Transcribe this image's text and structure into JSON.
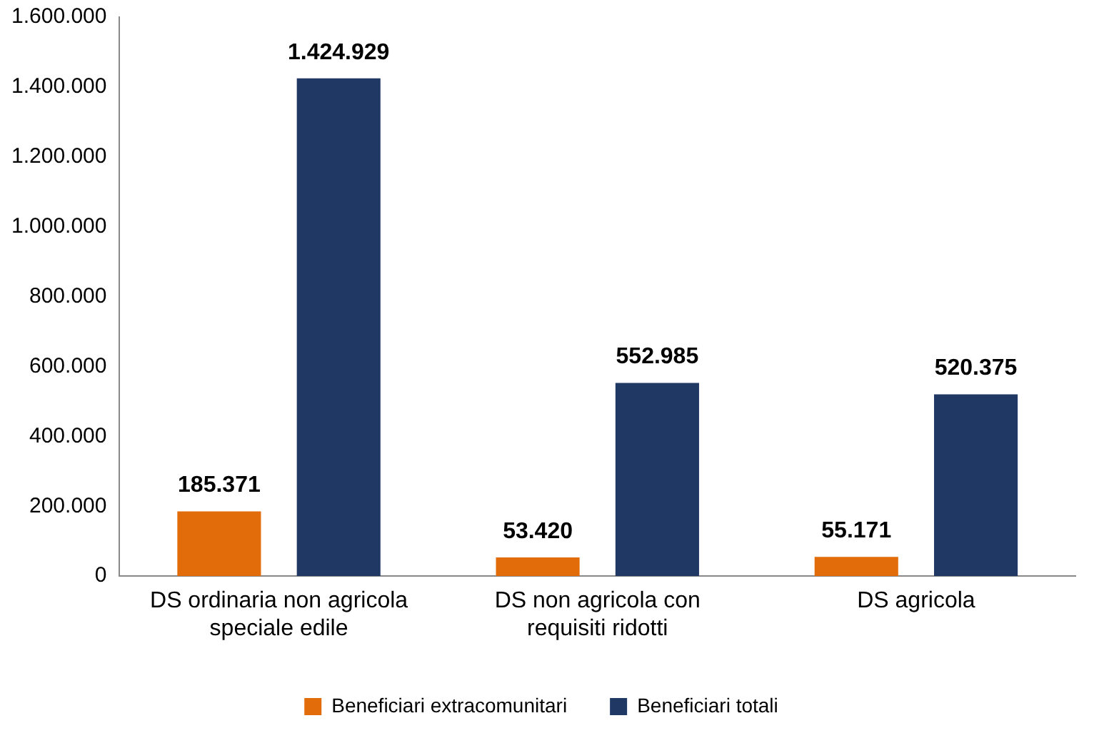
{
  "chart_data": {
    "type": "bar",
    "categories": [
      "DS ordinaria non agricola speciale edile",
      "DS non agricola con requisiti ridotti",
      "DS agricola"
    ],
    "series": [
      {
        "name": "Beneficiari extracomunitari",
        "color": "#e36c0a",
        "values": [
          185371,
          53420,
          55171
        ],
        "value_labels": [
          "185.371",
          "53.420",
          "55.171"
        ]
      },
      {
        "name": "Beneficiari totali",
        "color": "#1f3864",
        "values": [
          1424929,
          552985,
          520375
        ],
        "value_labels": [
          "1.424.929",
          "552.985",
          "520.375"
        ]
      }
    ],
    "ylim": [
      0,
      1600000
    ],
    "yticks": [
      {
        "value": 0,
        "label": "0"
      },
      {
        "value": 200000,
        "label": "200.000"
      },
      {
        "value": 400000,
        "label": "400.000"
      },
      {
        "value": 600000,
        "label": "600.000"
      },
      {
        "value": 800000,
        "label": "800.000"
      },
      {
        "value": 1000000,
        "label": "1.000.000"
      },
      {
        "value": 1200000,
        "label": "1.200.000"
      },
      {
        "value": 1400000,
        "label": "1.400.000"
      },
      {
        "value": 1600000,
        "label": "1.600.000"
      }
    ],
    "grid": false,
    "legend": "bottom"
  }
}
